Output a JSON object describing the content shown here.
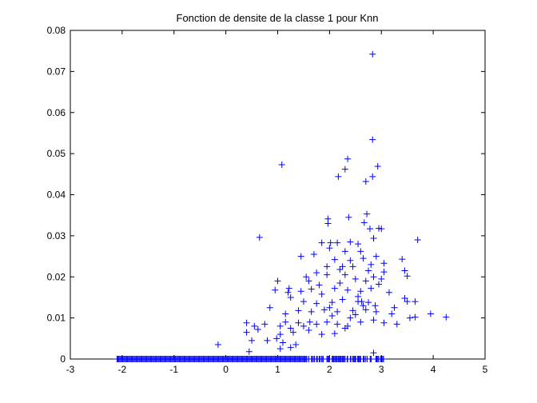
{
  "chart_data": {
    "type": "scatter",
    "title": "Fonction de densite de la classe 1 pour Knn",
    "xlabel": "",
    "ylabel": "",
    "xlim": [
      -3,
      5
    ],
    "ylim": [
      0,
      0.08
    ],
    "xticks": [
      -3,
      -2,
      -1,
      0,
      1,
      2,
      3,
      4,
      5
    ],
    "yticks": [
      0,
      0.01,
      0.02,
      0.03,
      0.04,
      0.05,
      0.06,
      0.07,
      0.08
    ],
    "xtick_labels": [
      "-3",
      "-2",
      "-1",
      "0",
      "1",
      "2",
      "3",
      "4",
      "5"
    ],
    "ytick_labels": [
      "0",
      "0.01",
      "0.02",
      "0.03",
      "0.04",
      "0.05",
      "0.06",
      "0.07",
      "0.08"
    ],
    "grid": false,
    "marker": "+",
    "color": "#0000ff",
    "series": [
      {
        "points": [
          [
            2.83,
            0.0742
          ],
          [
            2.83,
            0.0534
          ],
          [
            1.08,
            0.0473
          ],
          [
            2.93,
            0.0469
          ],
          [
            2.35,
            0.0487
          ],
          [
            2.3,
            0.0462
          ],
          [
            2.17,
            0.0444
          ],
          [
            2.83,
            0.0444
          ],
          [
            2.7,
            0.0432
          ],
          [
            2.72,
            0.0353
          ],
          [
            2.67,
            0.0332
          ],
          [
            2.37,
            0.0345
          ],
          [
            1.97,
            0.0341
          ],
          [
            1.97,
            0.033
          ],
          [
            2.78,
            0.0317
          ],
          [
            2.95,
            0.0318
          ],
          [
            3.0,
            0.0317
          ],
          [
            0.65,
            0.0296
          ],
          [
            3.7,
            0.029
          ],
          [
            2.85,
            0.0294
          ],
          [
            2.4,
            0.0285
          ],
          [
            2.15,
            0.0283
          ],
          [
            2.02,
            0.0283
          ],
          [
            1.85,
            0.0283
          ],
          [
            2.55,
            0.028
          ],
          [
            3.4,
            0.0243
          ],
          [
            1.45,
            0.025
          ],
          [
            1.7,
            0.0255
          ],
          [
            2.0,
            0.027
          ],
          [
            2.3,
            0.0262
          ],
          [
            2.6,
            0.0262
          ],
          [
            2.9,
            0.025
          ],
          [
            3.05,
            0.0233
          ],
          [
            3.45,
            0.0215
          ],
          [
            3.5,
            0.0202
          ],
          [
            1.55,
            0.02
          ],
          [
            1.75,
            0.021
          ],
          [
            1.95,
            0.0205
          ],
          [
            2.2,
            0.0218
          ],
          [
            2.45,
            0.0225
          ],
          [
            2.75,
            0.0215
          ],
          [
            2.85,
            0.02
          ],
          [
            3.15,
            0.0162
          ],
          [
            3.0,
            0.0195
          ],
          [
            1.0,
            0.019
          ],
          [
            1.2,
            0.0162
          ],
          [
            1.45,
            0.0165
          ],
          [
            1.65,
            0.017
          ],
          [
            1.85,
            0.0158
          ],
          [
            2.1,
            0.0172
          ],
          [
            2.35,
            0.0168
          ],
          [
            2.6,
            0.0165
          ],
          [
            2.8,
            0.0172
          ],
          [
            0.95,
            0.0168
          ],
          [
            1.25,
            0.015
          ],
          [
            1.5,
            0.014
          ],
          [
            1.75,
            0.0135
          ],
          [
            2.05,
            0.0138
          ],
          [
            2.25,
            0.0145
          ],
          [
            2.55,
            0.014
          ],
          [
            2.75,
            0.0138
          ],
          [
            3.45,
            0.0148
          ],
          [
            3.5,
            0.014
          ],
          [
            3.65,
            0.014
          ],
          [
            3.25,
            0.0125
          ],
          [
            0.85,
            0.0125
          ],
          [
            1.15,
            0.011
          ],
          [
            1.4,
            0.0118
          ],
          [
            1.65,
            0.0115
          ],
          [
            1.9,
            0.012
          ],
          [
            2.15,
            0.0115
          ],
          [
            2.45,
            0.0118
          ],
          [
            2.7,
            0.012
          ],
          [
            2.9,
            0.0115
          ],
          [
            3.2,
            0.011
          ],
          [
            3.95,
            0.011
          ],
          [
            3.65,
            0.0102
          ],
          [
            4.25,
            0.0102
          ],
          [
            0.4,
            0.0088
          ],
          [
            0.55,
            0.008
          ],
          [
            0.75,
            0.0085
          ],
          [
            1.05,
            0.008
          ],
          [
            1.25,
            0.0075
          ],
          [
            1.5,
            0.008
          ],
          [
            1.75,
            0.0085
          ],
          [
            1.95,
            0.009
          ],
          [
            2.15,
            0.0085
          ],
          [
            2.35,
            0.008
          ],
          [
            2.6,
            0.009
          ],
          [
            2.85,
            0.0095
          ],
          [
            3.05,
            0.0088
          ],
          [
            3.3,
            0.0085
          ],
          [
            3.55,
            0.01
          ],
          [
            0.4,
            0.0065
          ],
          [
            0.62,
            0.0072
          ],
          [
            1.05,
            0.006
          ],
          [
            1.3,
            0.0065
          ],
          [
            1.6,
            0.007
          ],
          [
            1.85,
            0.006
          ],
          [
            2.1,
            0.0062
          ],
          [
            2.3,
            0.0075
          ],
          [
            0.8,
            0.0045
          ],
          [
            1.1,
            0.004
          ],
          [
            1.35,
            0.0035
          ],
          [
            -0.15,
            0.0035
          ],
          [
            0.5,
            0.0045
          ],
          [
            1.05,
            0.0025
          ],
          [
            1.25,
            0.0028
          ],
          [
            0.45,
            0.0018
          ],
          [
            2.85,
            0.0015
          ],
          [
            1.22,
            0.0172
          ],
          [
            2.2,
            0.0185
          ],
          [
            2.5,
            0.0195
          ],
          [
            1.95,
            0.0225
          ],
          [
            2.1,
            0.0242
          ],
          [
            2.4,
            0.024
          ],
          [
            2.65,
            0.0245
          ],
          [
            2.3,
            0.0205
          ],
          [
            2.7,
            0.019
          ],
          [
            2.95,
            0.0182
          ],
          [
            1.6,
            0.019
          ],
          [
            1.8,
            0.018
          ],
          [
            2.55,
            0.0152
          ],
          [
            2.65,
            0.013
          ],
          [
            2.88,
            0.013
          ],
          [
            1.4,
            0.0088
          ],
          [
            1.62,
            0.009
          ],
          [
            2.05,
            0.0105
          ],
          [
            2.4,
            0.01
          ],
          [
            2.5,
            0.0108
          ],
          [
            2.62,
            0.014
          ],
          [
            2.0,
            0.0125
          ],
          [
            0.98,
            0.005
          ],
          [
            1.15,
            0.009
          ],
          [
            2.25,
            0.0225
          ],
          [
            2.8,
            0.023
          ],
          [
            3.05,
            0.0212
          ]
        ]
      },
      {
        "baseline_x_ranges": [
          [
            -2.1,
            3.05
          ]
        ],
        "baseline_value": 0,
        "note_points": [
          [
            -2.08,
            0
          ],
          [
            1.56,
            0
          ],
          [
            1.6,
            0
          ],
          [
            1.65,
            0
          ],
          [
            1.7,
            0
          ],
          [
            1.75,
            0
          ],
          [
            1.8,
            0
          ],
          [
            1.85,
            0
          ],
          [
            1.88,
            0
          ],
          [
            1.95,
            0
          ],
          [
            2.0,
            0
          ],
          [
            2.05,
            0
          ],
          [
            2.1,
            0
          ],
          [
            2.15,
            0
          ],
          [
            2.2,
            0
          ],
          [
            2.25,
            0
          ],
          [
            2.3,
            0
          ],
          [
            2.35,
            0
          ],
          [
            2.4,
            0
          ],
          [
            2.45,
            0
          ],
          [
            2.5,
            0
          ],
          [
            2.55,
            0
          ],
          [
            2.6,
            0
          ],
          [
            2.65,
            0
          ],
          [
            2.7,
            0
          ],
          [
            2.8,
            0
          ],
          [
            2.9,
            0
          ],
          [
            3.0,
            0
          ]
        ]
      }
    ]
  }
}
